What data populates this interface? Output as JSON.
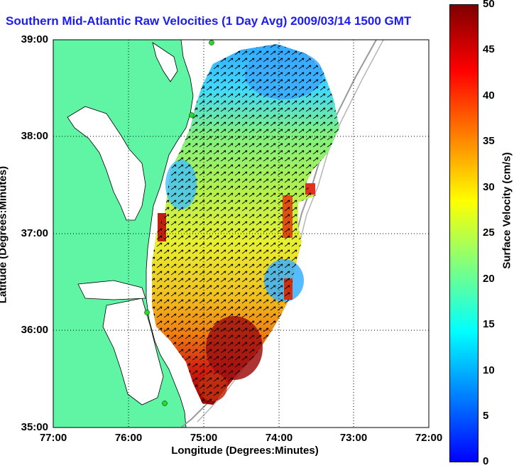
{
  "title": "Southern Mid-Atlantic Raw Velocities (1 Day Avg) 2009/03/14 1500 GMT",
  "axes": {
    "xlabel": "Longitude (Degrees:Minutes)",
    "ylabel": "Latitude (Degrees:Minutes)",
    "x_ticks": [
      "77:00",
      "76:00",
      "75:00",
      "74:00",
      "73:00",
      "72:00"
    ],
    "y_ticks": [
      "39:00",
      "38:00",
      "37:00",
      "36:00",
      "35:00"
    ],
    "xlim": [
      -77,
      -72
    ],
    "ylim": [
      35,
      39
    ],
    "grid": "dotted"
  },
  "colorbar": {
    "label": "Surface Velocity (cm/s)",
    "ticks": [
      "50",
      "45",
      "40",
      "35",
      "30",
      "25",
      "20",
      "15",
      "10",
      "5",
      "0"
    ],
    "range": [
      0,
      50
    ],
    "colormap": "jet"
  },
  "colors": {
    "land": "#5ff5a5",
    "ocean": "#ffffff",
    "title": "#1a1aff",
    "station": "#22dd22"
  }
}
